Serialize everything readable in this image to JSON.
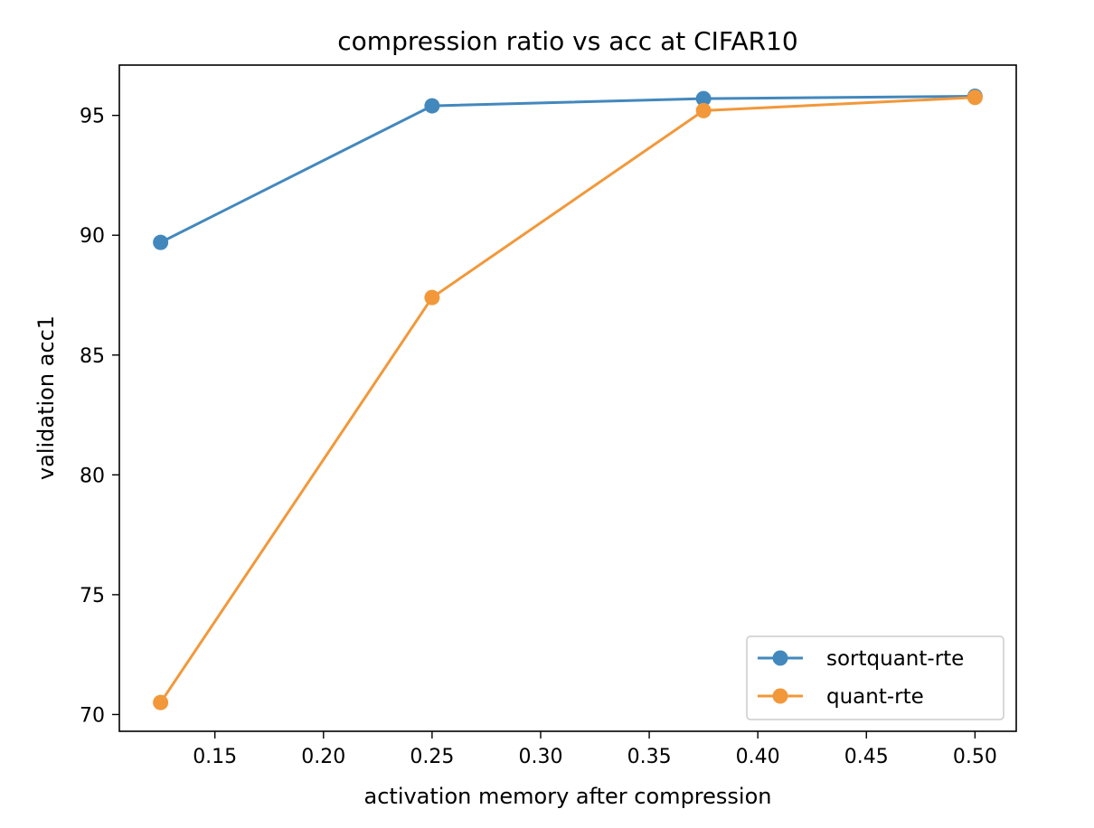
{
  "chart_data": {
    "type": "line",
    "title": "compression ratio vs acc at CIFAR10",
    "xlabel": "activation memory after compression",
    "ylabel": "validation acc1",
    "xlim": [
      0.106,
      0.519
    ],
    "ylim": [
      69.3,
      97.1
    ],
    "xticks": [
      0.15,
      0.2,
      0.25,
      0.3,
      0.35,
      0.4,
      0.45,
      0.5
    ],
    "xtick_labels": [
      "0.15",
      "0.20",
      "0.25",
      "0.30",
      "0.35",
      "0.40",
      "0.45",
      "0.50"
    ],
    "yticks": [
      70,
      75,
      80,
      85,
      90,
      95
    ],
    "ytick_labels": [
      "70",
      "75",
      "80",
      "85",
      "90",
      "95"
    ],
    "grid": false,
    "legend_position": "lower-right",
    "x": [
      0.125,
      0.25,
      0.375,
      0.5
    ],
    "series": [
      {
        "name": "sortquant-rte",
        "color": "#4388bd",
        "values": [
          89.7,
          95.4,
          95.7,
          95.8
        ]
      },
      {
        "name": "quant-rte",
        "color": "#f2983a",
        "values": [
          70.5,
          87.4,
          95.2,
          95.75
        ]
      }
    ]
  }
}
